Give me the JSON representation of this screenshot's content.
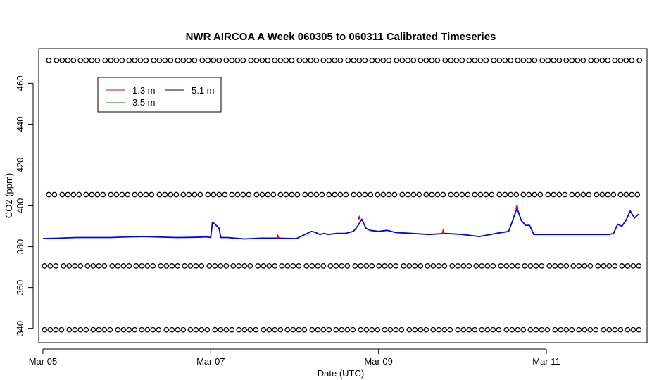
{
  "chart_data": {
    "type": "line",
    "title": "NWR AIRCOA A  Week 060305 to 060311  Calibrated Timeseries",
    "xlabel": "Date (UTC)",
    "ylabel": "CO2 (ppm)",
    "xlim": [
      -0.05,
      7.2
    ],
    "ylim": [
      333,
      477
    ],
    "x_ticks": [
      {
        "value": 0,
        "label": "Mar 05"
      },
      {
        "value": 2,
        "label": "Mar 07"
      },
      {
        "value": 4,
        "label": "Mar 09"
      },
      {
        "value": 6,
        "label": "Mar 11"
      }
    ],
    "y_ticks": [
      340,
      360,
      380,
      400,
      420,
      440,
      460
    ],
    "legend": {
      "placement": "top-left",
      "entries": [
        {
          "name": "1.3 m",
          "color": "#ff0000"
        },
        {
          "name": "3.5 m",
          "color": "#008000"
        },
        {
          "name": "5.1 m",
          "color": "#000080"
        }
      ]
    },
    "series": [
      {
        "name": "5.1 m",
        "color": "#0000ff",
        "x": [
          0.0,
          0.2,
          0.4,
          0.6,
          0.8,
          1.0,
          1.2,
          1.4,
          1.6,
          1.8,
          1.95,
          2.0,
          2.02,
          2.05,
          2.1,
          2.12,
          2.2,
          2.4,
          2.6,
          2.8,
          3.0,
          3.02,
          3.2,
          3.25,
          3.3,
          3.35,
          3.4,
          3.5,
          3.6,
          3.7,
          3.75,
          3.8,
          3.85,
          3.9,
          4.0,
          4.1,
          4.2,
          4.4,
          4.6,
          4.8,
          5.0,
          5.2,
          5.4,
          5.55,
          5.6,
          5.65,
          5.7,
          5.75,
          5.8,
          5.85,
          5.9,
          6.0,
          6.2,
          6.4,
          6.6,
          6.75,
          6.8,
          6.85,
          6.9,
          6.95,
          7.0,
          7.05,
          7.1
        ],
        "values": [
          384,
          384.2,
          384.5,
          384.5,
          384.5,
          384.8,
          385.0,
          384.7,
          384.5,
          384.6,
          384.8,
          384.5,
          392,
          391,
          389,
          384.5,
          384.5,
          383.8,
          384.2,
          384.2,
          384.0,
          384.0,
          387.5,
          387.0,
          386.0,
          386.5,
          386.0,
          386.5,
          386.5,
          387.5,
          390,
          393.5,
          389,
          388,
          387.5,
          388.0,
          387.0,
          386.5,
          386.0,
          386.5,
          386.0,
          385.0,
          386.5,
          387.5,
          393,
          399,
          393,
          390.5,
          390.5,
          386.0,
          386.0,
          386.0,
          386.0,
          386.0,
          386.0,
          386.0,
          386.5,
          391,
          390,
          393,
          397.5,
          394,
          396
        ]
      },
      {
        "name": "1.3 m",
        "color": "#ff0000",
        "x": [
          2.79,
          2.8,
          2.81,
          3.76,
          3.77,
          3.78,
          4.76,
          4.77,
          4.78,
          5.64,
          5.65,
          5.66
        ],
        "values": [
          384.2,
          385.3,
          384.2,
          393.5,
          394.5,
          393.5,
          386.3,
          387.8,
          386.3,
          398.5,
          400.2,
          398.5
        ]
      }
    ],
    "flag_rows": [
      {
        "y": 339.3,
        "x_start": 0.02,
        "x_end": 7.12
      },
      {
        "y": 370.6,
        "x_start": 0.02,
        "x_end": 7.12
      },
      {
        "y": 405.5,
        "x_start": 0.07,
        "x_end": 7.12
      },
      {
        "y": 471.2,
        "x_start": 0.07,
        "x_end": 7.12
      }
    ]
  }
}
